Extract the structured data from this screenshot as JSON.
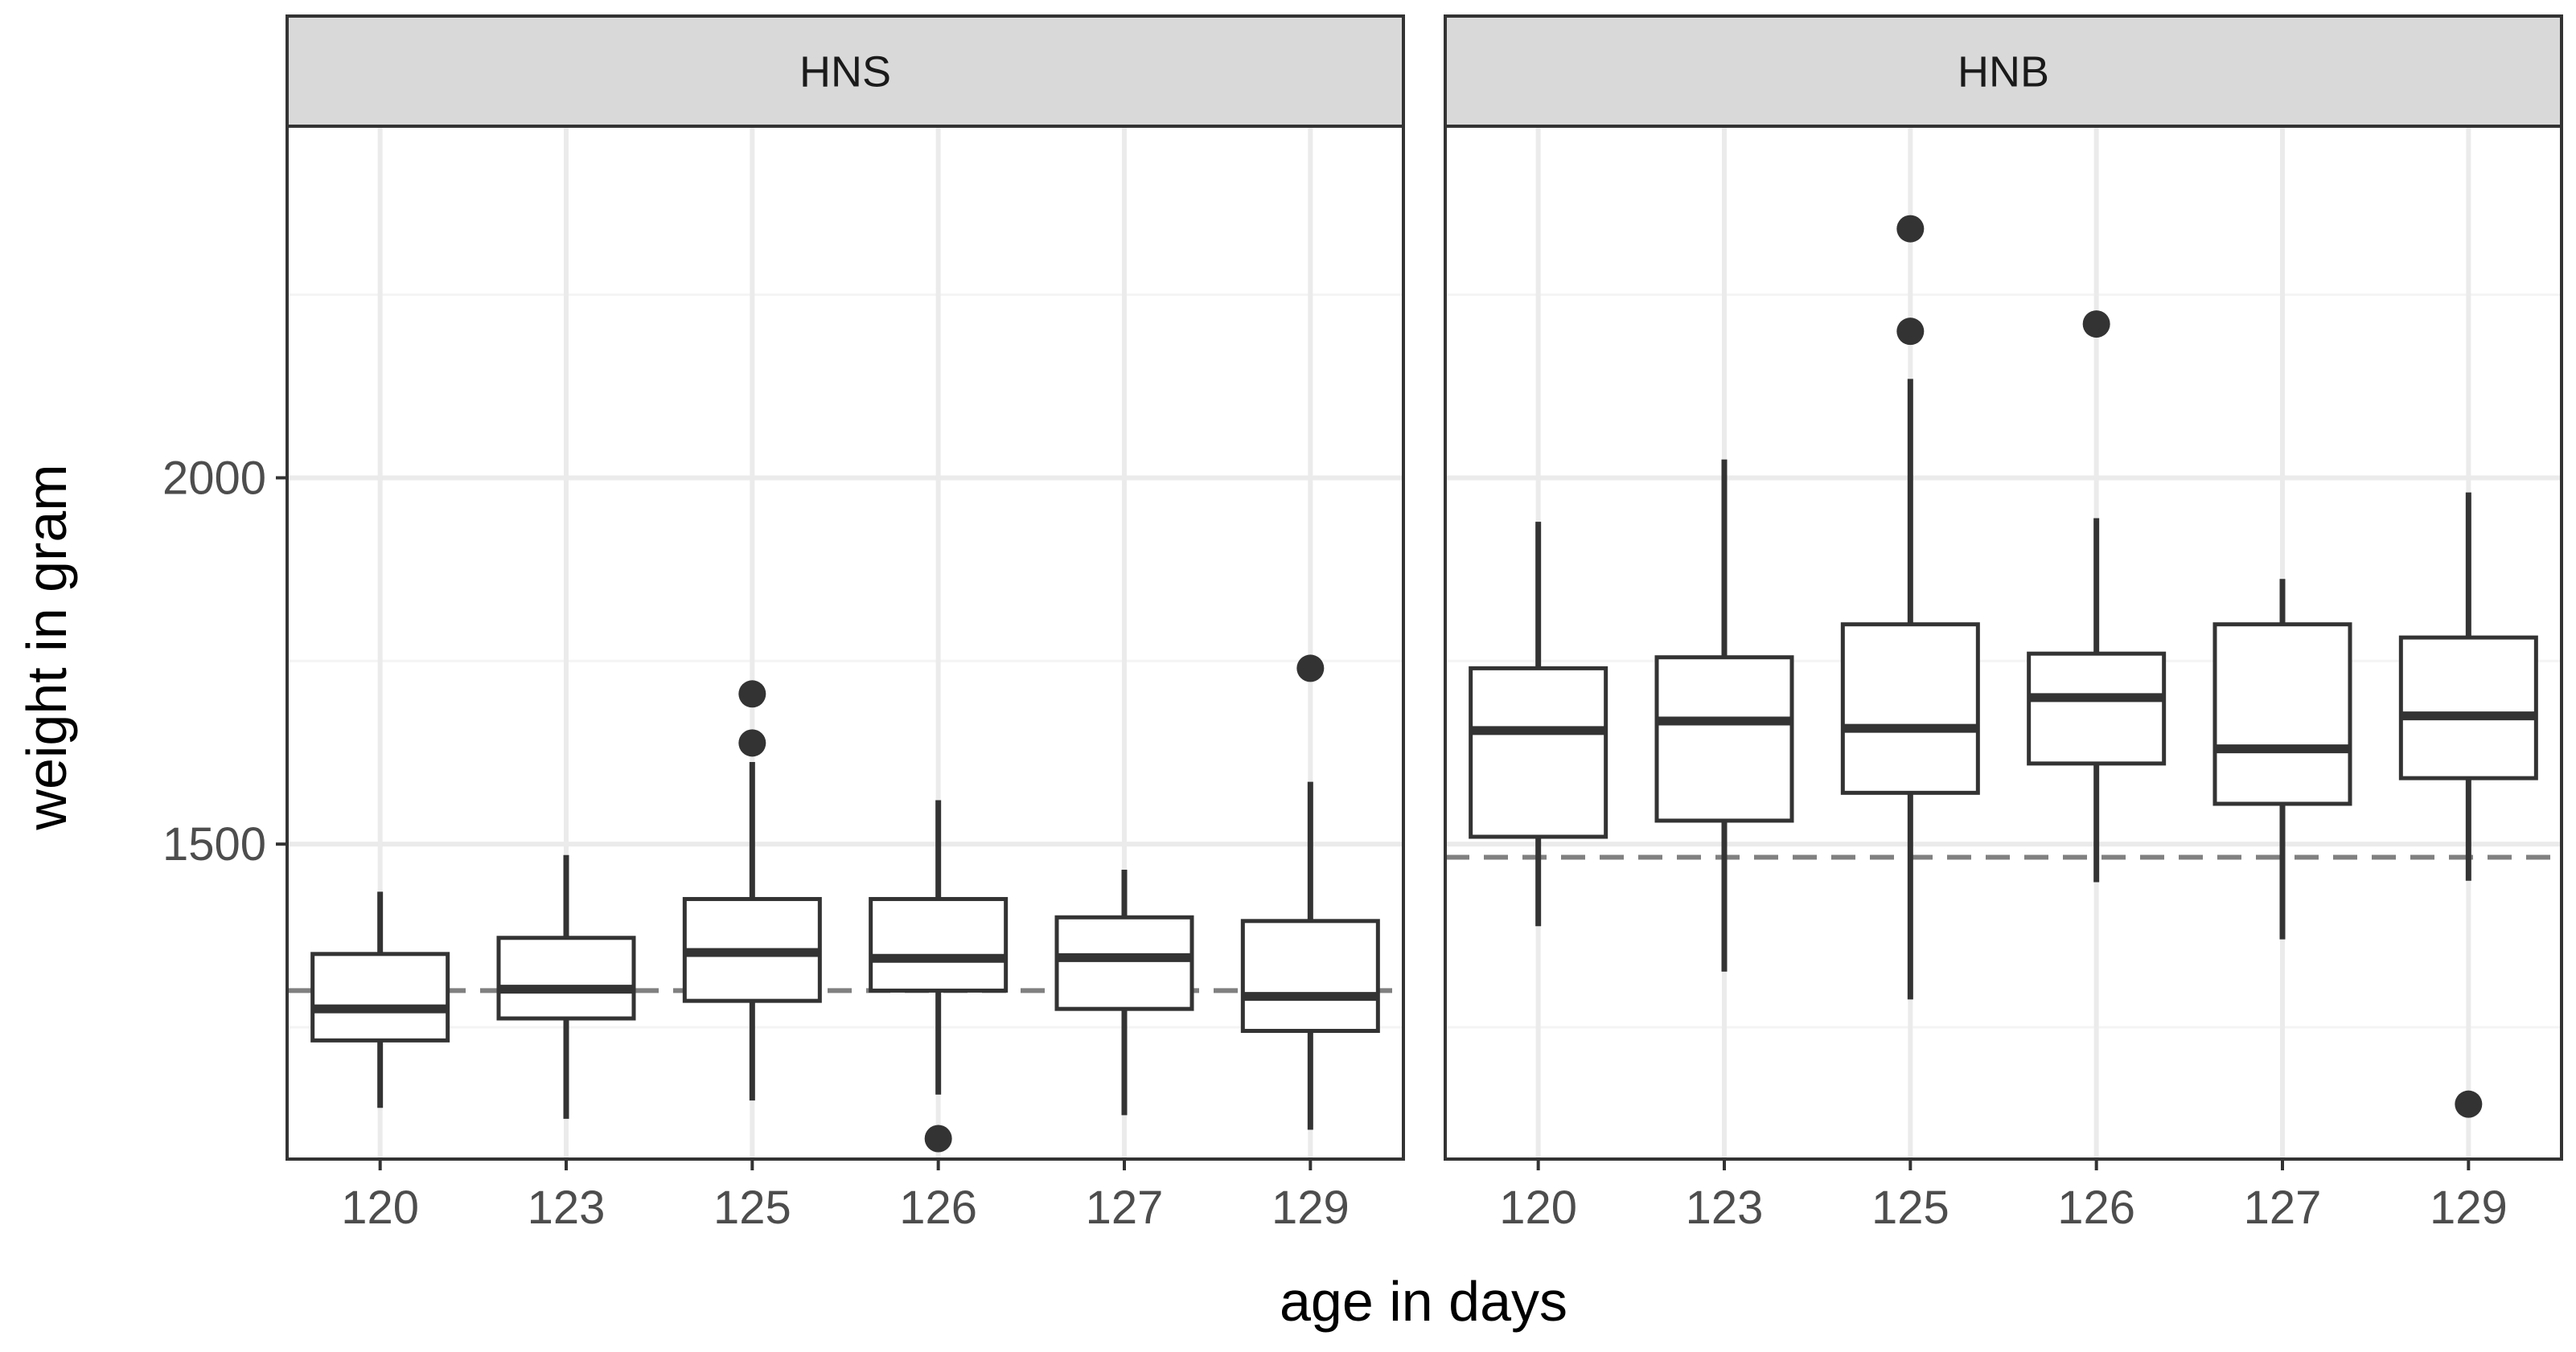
{
  "chart_data": {
    "type": "boxplot",
    "xlabel": "age in days",
    "ylabel": "weight in gram",
    "ylim": [
      1070,
      2480
    ],
    "yticks": [
      {
        "value": 2000,
        "label": "2000"
      },
      {
        "value": 1500,
        "label": "1500"
      }
    ],
    "minor_grid": [
      1250,
      1750,
      2250
    ],
    "categories": [
      "120",
      "123",
      "125",
      "126",
      "127",
      "129"
    ],
    "panels": [
      {
        "name": "HNS",
        "reference_line": 1300,
        "boxes": [
          {
            "category": "120",
            "whisker_low": 1140,
            "q1": 1232,
            "median": 1275,
            "q3": 1350,
            "whisker_high": 1435,
            "outliers": []
          },
          {
            "category": "123",
            "whisker_low": 1125,
            "q1": 1262,
            "median": 1302,
            "q3": 1372,
            "whisker_high": 1485,
            "outliers": []
          },
          {
            "category": "125",
            "whisker_low": 1150,
            "q1": 1286,
            "median": 1352,
            "q3": 1425,
            "whisker_high": 1612,
            "outliers": [
              1705,
              1638
            ]
          },
          {
            "category": "126",
            "whisker_low": 1158,
            "q1": 1300,
            "median": 1344,
            "q3": 1425,
            "whisker_high": 1560,
            "outliers": [
              1098
            ]
          },
          {
            "category": "127",
            "whisker_low": 1130,
            "q1": 1275,
            "median": 1345,
            "q3": 1400,
            "whisker_high": 1465,
            "outliers": []
          },
          {
            "category": "129",
            "whisker_low": 1110,
            "q1": 1245,
            "median": 1292,
            "q3": 1395,
            "whisker_high": 1585,
            "outliers": [
              1740
            ]
          }
        ]
      },
      {
        "name": "HNB",
        "reference_line": 1482,
        "boxes": [
          {
            "category": "120",
            "whisker_low": 1388,
            "q1": 1510,
            "median": 1655,
            "q3": 1740,
            "whisker_high": 1940,
            "outliers": []
          },
          {
            "category": "123",
            "whisker_low": 1326,
            "q1": 1532,
            "median": 1668,
            "q3": 1755,
            "whisker_high": 2025,
            "outliers": []
          },
          {
            "category": "125",
            "whisker_low": 1288,
            "q1": 1570,
            "median": 1658,
            "q3": 1800,
            "whisker_high": 2135,
            "outliers": [
              2340,
              2200
            ]
          },
          {
            "category": "126",
            "whisker_low": 1448,
            "q1": 1610,
            "median": 1700,
            "q3": 1760,
            "whisker_high": 1945,
            "outliers": [
              2210
            ]
          },
          {
            "category": "127",
            "whisker_low": 1370,
            "q1": 1555,
            "median": 1630,
            "q3": 1800,
            "whisker_high": 1862,
            "outliers": []
          },
          {
            "category": "129",
            "whisker_low": 1450,
            "q1": 1590,
            "median": 1675,
            "q3": 1782,
            "whisker_high": 1980,
            "outliers": [
              1145
            ]
          }
        ]
      }
    ]
  },
  "colors": {
    "box_line": "#333333",
    "panel_border": "#333333",
    "strip_fill": "#d9d9d9",
    "grid_major": "#ebebeb",
    "grid_minor": "#f4f4f4",
    "reference_line": "#808080",
    "tick_label": "#4d4d4d"
  }
}
